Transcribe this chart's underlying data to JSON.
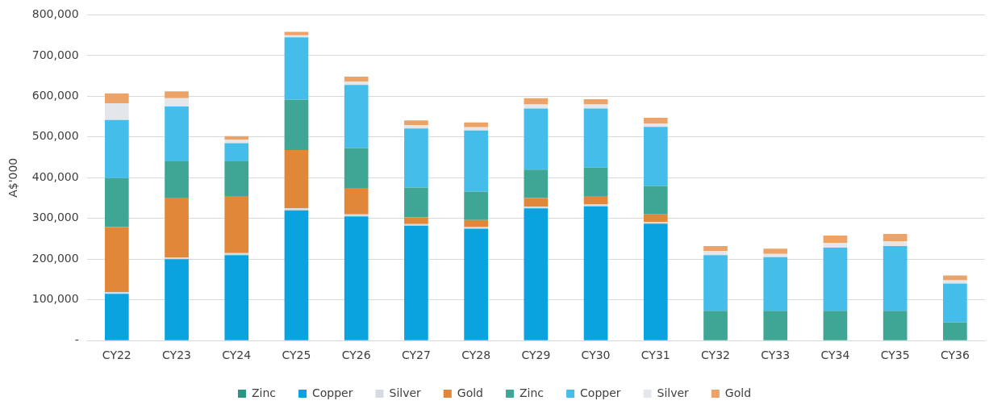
{
  "chart_data": {
    "type": "bar",
    "stacked": true,
    "ylabel": "A$'000",
    "categories": [
      "CY22",
      "CY23",
      "CY24",
      "CY25",
      "CY26",
      "CY27",
      "CY28",
      "CY29",
      "CY30",
      "CY31",
      "CY32",
      "CY33",
      "CY34",
      "CY35",
      "CY36"
    ],
    "series": [
      {
        "name": "Zinc",
        "color": "#2a9482",
        "values": [
          0,
          0,
          0,
          0,
          0,
          0,
          0,
          0,
          0,
          0,
          0,
          0,
          0,
          0,
          0
        ]
      },
      {
        "name": "Copper",
        "color": "#0aa3e0",
        "values": [
          115000,
          200000,
          210000,
          320000,
          305000,
          282000,
          275000,
          325000,
          330000,
          287000,
          0,
          0,
          0,
          0,
          0
        ]
      },
      {
        "name": "Silver",
        "color": "#d5dbe0",
        "values": [
          4000,
          4000,
          5000,
          5000,
          5000,
          4000,
          4000,
          4000,
          4000,
          4000,
          0,
          0,
          0,
          0,
          0
        ]
      },
      {
        "name": "Gold",
        "color": "#e0873a",
        "values": [
          160000,
          147000,
          140000,
          143000,
          65000,
          17000,
          17000,
          21000,
          21000,
          19000,
          0,
          0,
          0,
          0,
          0
        ]
      },
      {
        "name": "Zinc",
        "color": "#3fa595",
        "values": [
          120000,
          89000,
          85000,
          124000,
          98000,
          73000,
          70000,
          70000,
          70000,
          70000,
          73000,
          73000,
          73000,
          73000,
          45000
        ]
      },
      {
        "name": "Copper",
        "color": "#45bdea",
        "values": [
          143000,
          135000,
          45000,
          153000,
          155000,
          145000,
          150000,
          150000,
          145000,
          145000,
          137000,
          132000,
          155000,
          159000,
          95000
        ]
      },
      {
        "name": "Silver",
        "color": "#e3e7eb",
        "values": [
          41000,
          20000,
          8000,
          5000,
          8000,
          8000,
          8000,
          10000,
          10000,
          8000,
          10000,
          8000,
          12000,
          12000,
          8000
        ]
      },
      {
        "name": "Gold",
        "color": "#eba368",
        "values": [
          24000,
          17000,
          9000,
          8000,
          12000,
          12000,
          12000,
          15000,
          13000,
          14000,
          12000,
          13000,
          18000,
          18000,
          12000
        ]
      }
    ],
    "ylim": [
      0,
      800000
    ],
    "yticks": [
      {
        "value": 0,
        "label": "-"
      },
      {
        "value": 100000,
        "label": "100,000"
      },
      {
        "value": 200000,
        "label": "200,000"
      },
      {
        "value": 300000,
        "label": "300,000"
      },
      {
        "value": 400000,
        "label": "400,000"
      },
      {
        "value": 500000,
        "label": "500,000"
      },
      {
        "value": 600000,
        "label": "600,000"
      },
      {
        "value": 700000,
        "label": "700,000"
      },
      {
        "value": 800000,
        "label": "800,000"
      }
    ],
    "grid": "y",
    "legend": "bottom"
  }
}
